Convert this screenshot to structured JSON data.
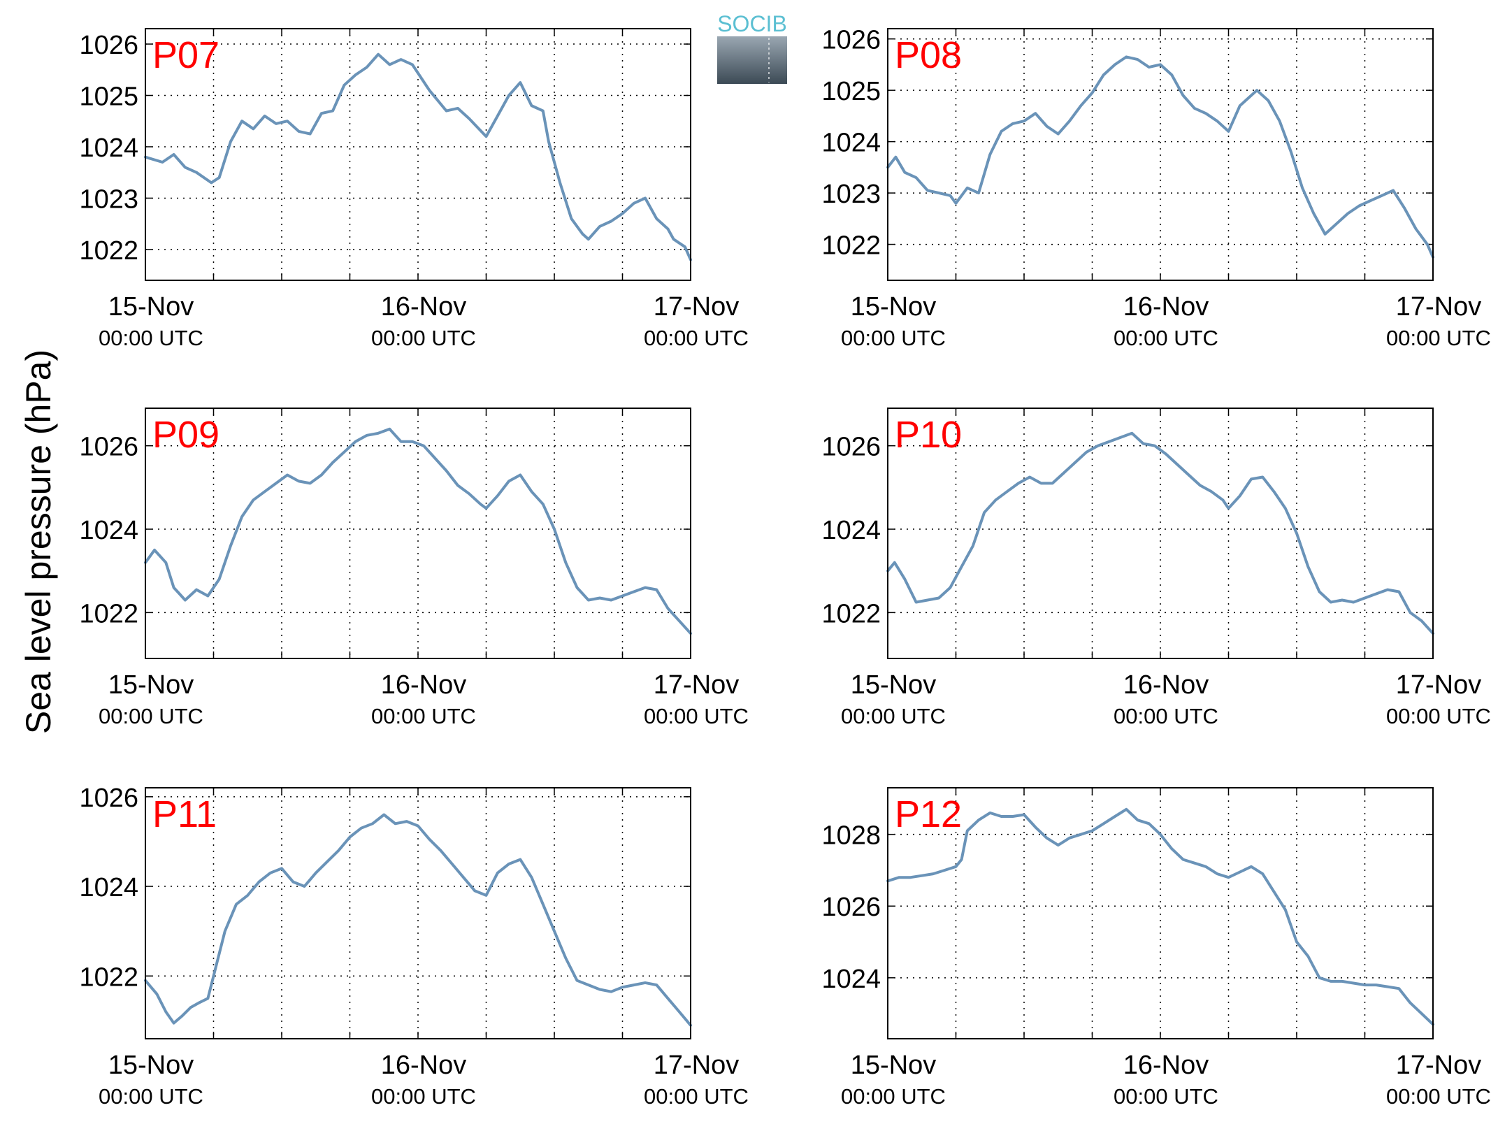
{
  "figure": {
    "ylabel": "Sea level pressure (hPa)",
    "logo_text": "SOCIB",
    "line_color": "#6a93b8",
    "label_color": "#ff0000",
    "x_ticks": [
      {
        "top": "15-Nov",
        "bottom": "00:00 UTC",
        "at": 0
      },
      {
        "top": "16-Nov",
        "bottom": "00:00 UTC",
        "at": 24
      },
      {
        "top": "17-Nov",
        "bottom": "00:00 UTC",
        "at": 48
      }
    ]
  },
  "chart_data": [
    {
      "type": "line",
      "title": "P07",
      "xlim": [
        0,
        48
      ],
      "ylim": [
        1021.4,
        1026.3
      ],
      "grid": true,
      "yticks": [
        1022,
        1023,
        1024,
        1025,
        1026
      ],
      "x": [
        0,
        1.5,
        2.5,
        3.5,
        4.5,
        5.8,
        6.5,
        7.5,
        8.5,
        9.5,
        10.5,
        11.5,
        12.5,
        13.5,
        14.5,
        15.5,
        16.5,
        17.5,
        18.5,
        19.5,
        20.5,
        21.5,
        22.5,
        23.5,
        25,
        26.5,
        27.5,
        28.5,
        30,
        31,
        32,
        33,
        34,
        35,
        35.5,
        36.5,
        37.5,
        38.5,
        39,
        40,
        41,
        42,
        43,
        44,
        45,
        46,
        46.5,
        47.5,
        48
      ],
      "y": [
        1023.8,
        1023.7,
        1023.85,
        1023.6,
        1023.5,
        1023.3,
        1023.4,
        1024.1,
        1024.5,
        1024.35,
        1024.6,
        1024.45,
        1024.5,
        1024.3,
        1024.25,
        1024.65,
        1024.7,
        1025.2,
        1025.4,
        1025.55,
        1025.8,
        1025.6,
        1025.7,
        1025.6,
        1025.1,
        1024.7,
        1024.75,
        1024.55,
        1024.2,
        1024.6,
        1025.0,
        1025.25,
        1024.8,
        1024.7,
        1024.1,
        1023.3,
        1022.6,
        1022.3,
        1022.2,
        1022.45,
        1022.55,
        1022.7,
        1022.9,
        1023.0,
        1022.6,
        1022.4,
        1022.2,
        1022.05,
        1021.8
      ]
    },
    {
      "type": "line",
      "title": "P08",
      "xlim": [
        0,
        48
      ],
      "ylim": [
        1021.3,
        1026.2
      ],
      "grid": true,
      "yticks": [
        1022,
        1023,
        1024,
        1025,
        1026
      ],
      "x": [
        0,
        0.7,
        1.5,
        2.5,
        3.5,
        4.5,
        5.5,
        6,
        7,
        8,
        9,
        10,
        11,
        12,
        13,
        14,
        15,
        16,
        17,
        18,
        19,
        20,
        21,
        22,
        23,
        24,
        25,
        26,
        27,
        28,
        29,
        30,
        31,
        31.5,
        32.5,
        33.5,
        34.5,
        35.5,
        36.5,
        37.5,
        38.5,
        39.5,
        40.5,
        41.5,
        42.5,
        43.5,
        44.5,
        45.5,
        46.5,
        47.5,
        48
      ],
      "y": [
        1023.5,
        1023.7,
        1023.4,
        1023.3,
        1023.05,
        1023.0,
        1022.95,
        1022.8,
        1023.1,
        1023.0,
        1023.75,
        1024.2,
        1024.35,
        1024.4,
        1024.55,
        1024.3,
        1024.15,
        1024.4,
        1024.7,
        1024.95,
        1025.3,
        1025.5,
        1025.65,
        1025.6,
        1025.45,
        1025.5,
        1025.3,
        1024.9,
        1024.65,
        1024.55,
        1024.4,
        1024.2,
        1024.7,
        1024.8,
        1025.0,
        1024.8,
        1024.4,
        1023.8,
        1023.1,
        1022.6,
        1022.2,
        1022.4,
        1022.6,
        1022.75,
        1022.85,
        1022.95,
        1023.05,
        1022.7,
        1022.3,
        1022.0,
        1021.75
      ]
    },
    {
      "type": "line",
      "title": "P09",
      "xlim": [
        0,
        48
      ],
      "ylim": [
        1020.9,
        1026.9
      ],
      "grid": true,
      "yticks": [
        1022,
        1024,
        1026
      ],
      "x": [
        0,
        0.8,
        1.8,
        2.5,
        3.5,
        4.5,
        5.5,
        6.5,
        7.5,
        8.5,
        9.5,
        10.5,
        11.5,
        12.5,
        13.5,
        14.5,
        15.5,
        16.5,
        17.5,
        18.5,
        19.5,
        20.5,
        21.5,
        22.5,
        23.5,
        24.5,
        25.5,
        26.5,
        27.5,
        28.5,
        29.5,
        30,
        31,
        32,
        33,
        34,
        35,
        36,
        37,
        38,
        39,
        40,
        41,
        42,
        43,
        44,
        45,
        46,
        47,
        48
      ],
      "y": [
        1023.2,
        1023.5,
        1023.2,
        1022.6,
        1022.3,
        1022.55,
        1022.4,
        1022.8,
        1023.6,
        1024.3,
        1024.7,
        1024.9,
        1025.1,
        1025.3,
        1025.15,
        1025.1,
        1025.3,
        1025.6,
        1025.85,
        1026.1,
        1026.25,
        1026.3,
        1026.4,
        1026.1,
        1026.1,
        1026.0,
        1025.7,
        1025.4,
        1025.05,
        1024.85,
        1024.6,
        1024.5,
        1024.8,
        1025.15,
        1025.3,
        1024.9,
        1024.6,
        1024.0,
        1023.2,
        1022.6,
        1022.3,
        1022.35,
        1022.3,
        1022.4,
        1022.5,
        1022.6,
        1022.55,
        1022.1,
        1021.8,
        1021.5
      ]
    },
    {
      "type": "line",
      "title": "P10",
      "xlim": [
        0,
        48
      ],
      "ylim": [
        1020.9,
        1026.9
      ],
      "grid": true,
      "yticks": [
        1022,
        1024,
        1026
      ],
      "x": [
        0,
        0.6,
        1.5,
        2.5,
        3.5,
        4.5,
        5.5,
        6.5,
        7.5,
        8.5,
        9.5,
        10.5,
        11.5,
        12.5,
        13.5,
        14.5,
        15.5,
        16.5,
        17.5,
        18.5,
        19.5,
        20.5,
        21.5,
        22.5,
        23.5,
        24.5,
        25.5,
        26.5,
        27.5,
        28.5,
        29.5,
        30,
        31,
        32,
        33,
        34,
        35,
        36,
        37,
        38,
        39,
        40,
        41,
        42,
        43,
        44,
        45,
        46,
        47,
        48
      ],
      "y": [
        1023.0,
        1023.2,
        1022.8,
        1022.25,
        1022.3,
        1022.35,
        1022.6,
        1023.1,
        1023.6,
        1024.4,
        1024.7,
        1024.9,
        1025.1,
        1025.25,
        1025.1,
        1025.1,
        1025.35,
        1025.6,
        1025.85,
        1026.0,
        1026.1,
        1026.2,
        1026.3,
        1026.05,
        1026.0,
        1025.8,
        1025.55,
        1025.3,
        1025.05,
        1024.9,
        1024.7,
        1024.5,
        1024.8,
        1025.2,
        1025.25,
        1024.9,
        1024.5,
        1023.9,
        1023.1,
        1022.5,
        1022.25,
        1022.3,
        1022.25,
        1022.35,
        1022.45,
        1022.55,
        1022.5,
        1022.0,
        1021.8,
        1021.5
      ]
    },
    {
      "type": "line",
      "title": "P11",
      "xlim": [
        0,
        48
      ],
      "ylim": [
        1020.6,
        1026.2
      ],
      "grid": true,
      "yticks": [
        1022,
        1024,
        1026
      ],
      "x": [
        0,
        1,
        1.8,
        2.5,
        3.2,
        4,
        4.7,
        5.5,
        6.3,
        7,
        8,
        9,
        10,
        11,
        12,
        13,
        14,
        15,
        16,
        17,
        18,
        19,
        20,
        21,
        22,
        23,
        24,
        25,
        26,
        27,
        28,
        29,
        30,
        31,
        32,
        33,
        34,
        35,
        36,
        37,
        38,
        39,
        40,
        41,
        42,
        43,
        44,
        45,
        46,
        47,
        48
      ],
      "y": [
        1021.9,
        1021.6,
        1021.2,
        1020.95,
        1021.1,
        1021.3,
        1021.4,
        1021.5,
        1022.3,
        1023.0,
        1023.6,
        1023.8,
        1024.1,
        1024.3,
        1024.4,
        1024.1,
        1024.0,
        1024.3,
        1024.55,
        1024.8,
        1025.1,
        1025.3,
        1025.4,
        1025.6,
        1025.4,
        1025.45,
        1025.35,
        1025.05,
        1024.8,
        1024.5,
        1024.2,
        1023.9,
        1023.8,
        1024.3,
        1024.5,
        1024.6,
        1024.2,
        1023.6,
        1023.0,
        1022.4,
        1021.9,
        1021.8,
        1021.7,
        1021.65,
        1021.75,
        1021.8,
        1021.85,
        1021.8,
        1021.5,
        1021.2,
        1020.9
      ]
    },
    {
      "type": "line",
      "title": "P12",
      "xlim": [
        0,
        48
      ],
      "ylim": [
        1022.3,
        1029.3
      ],
      "grid": true,
      "yticks": [
        1024,
        1026,
        1028
      ],
      "x": [
        0,
        1,
        2,
        3,
        4,
        5,
        6,
        6.5,
        7,
        8,
        9,
        10,
        11,
        12,
        13,
        14,
        15,
        16,
        17,
        18,
        19,
        20,
        21,
        22,
        23,
        24,
        25,
        26,
        27,
        28,
        29,
        30,
        31,
        32,
        33,
        34,
        35,
        36,
        37,
        38,
        39,
        40,
        41,
        42,
        43,
        44,
        45,
        46,
        47,
        48
      ],
      "y": [
        1026.7,
        1026.8,
        1026.8,
        1026.85,
        1026.9,
        1027.0,
        1027.1,
        1027.3,
        1028.1,
        1028.4,
        1028.6,
        1028.5,
        1028.5,
        1028.55,
        1028.2,
        1027.9,
        1027.7,
        1027.9,
        1028.0,
        1028.1,
        1028.3,
        1028.5,
        1028.7,
        1028.4,
        1028.3,
        1028.0,
        1027.6,
        1027.3,
        1027.2,
        1027.1,
        1026.9,
        1026.8,
        1026.95,
        1027.1,
        1026.9,
        1026.4,
        1025.9,
        1025.0,
        1024.6,
        1024.0,
        1023.9,
        1023.9,
        1023.85,
        1023.8,
        1023.8,
        1023.75,
        1023.7,
        1023.3,
        1023.0,
        1022.7
      ]
    }
  ]
}
